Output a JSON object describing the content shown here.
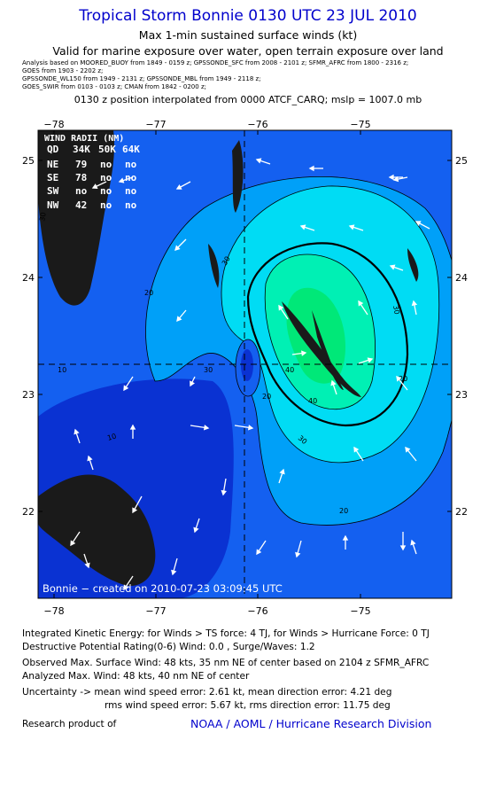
{
  "header": {
    "title": "Tropical Storm Bonnie 0130 UTC 23 JUL 2010",
    "subtitle": "Max 1-min sustained surface winds (kt)",
    "valid_for": "Valid for marine exposure over water, open terrain exposure over land",
    "analysis_lines": [
      "Analysis based on   MOORED_BUOY from 1849 - 0159 z;  GPSSONDE_SFC from 2008 - 2101 z;  SFMR_AFRC from 1800 - 2316 z;",
      "GOES from 1903 - 2202 z;",
      "GPSSONDE_WL150 from 1949 - 2131 z;  GPSSONDE_MBL from 1949 - 2118 z;",
      "GOES_SWIR from 0103 - 0103 z;  CMAN from 1842 - 0200 z;"
    ],
    "position_line": "0130 z position interpolated from 0000 ATCF_CARQ; mslp = 1007.0 mb"
  },
  "map": {
    "lon_ticks": [
      "−78",
      "−77",
      "−76",
      "−75"
    ],
    "lat_ticks": [
      "25",
      "24",
      "23",
      "22"
    ],
    "contour_labels": [
      "30",
      "20",
      "30",
      "20",
      "40",
      "30",
      "10",
      "20",
      "30",
      "40",
      "30",
      "20",
      "10"
    ],
    "credit": "Bonnie − created on 2010-07-23 03:09:45 UTC",
    "colors": {
      "ocean_deep": "#0a32d2",
      "low": "#1460f0",
      "band_20": "#00a0f8",
      "band_30": "#00dcf4",
      "band_40": "#00f0b4",
      "band_45": "#00e878",
      "land": "#1a1a1a"
    }
  },
  "wind_radii": {
    "title": "WIND RADII (NM)",
    "columns": [
      "QD",
      "34K",
      "50K",
      "64K"
    ],
    "rows": [
      [
        "NE",
        "79",
        "no",
        "no"
      ],
      [
        "SE",
        "78",
        "no",
        "no"
      ],
      [
        "SW",
        "no",
        "no",
        "no"
      ],
      [
        "NW",
        "42",
        "no",
        "no"
      ]
    ]
  },
  "footer": {
    "ike": "Integrated Kinetic Energy:  for Winds > TS force: 4 TJ,  for Winds > Hurricane Force: 0 TJ",
    "dpr": "Destructive Potential Rating(0-6)   Wind: 0.0 , Surge/Waves: 1.2",
    "observed": "Observed Max. Surface Wind: 48 kts, 35 nm NE of center based on 2104 z SFMR_AFRC",
    "analyzed": "Analyzed Max. Wind: 48 kts, 40 nm NE of center",
    "uncertainty_1": "Uncertainty -> mean wind speed error: 2.61 kt,   mean direction error: 4.21 deg",
    "uncertainty_2": "rms wind speed error: 5.67 kt,   rms direction error: 11.75 deg",
    "research_label": "Research product of",
    "research_org": "NOAA / AOML / Hurricane Research Division"
  }
}
